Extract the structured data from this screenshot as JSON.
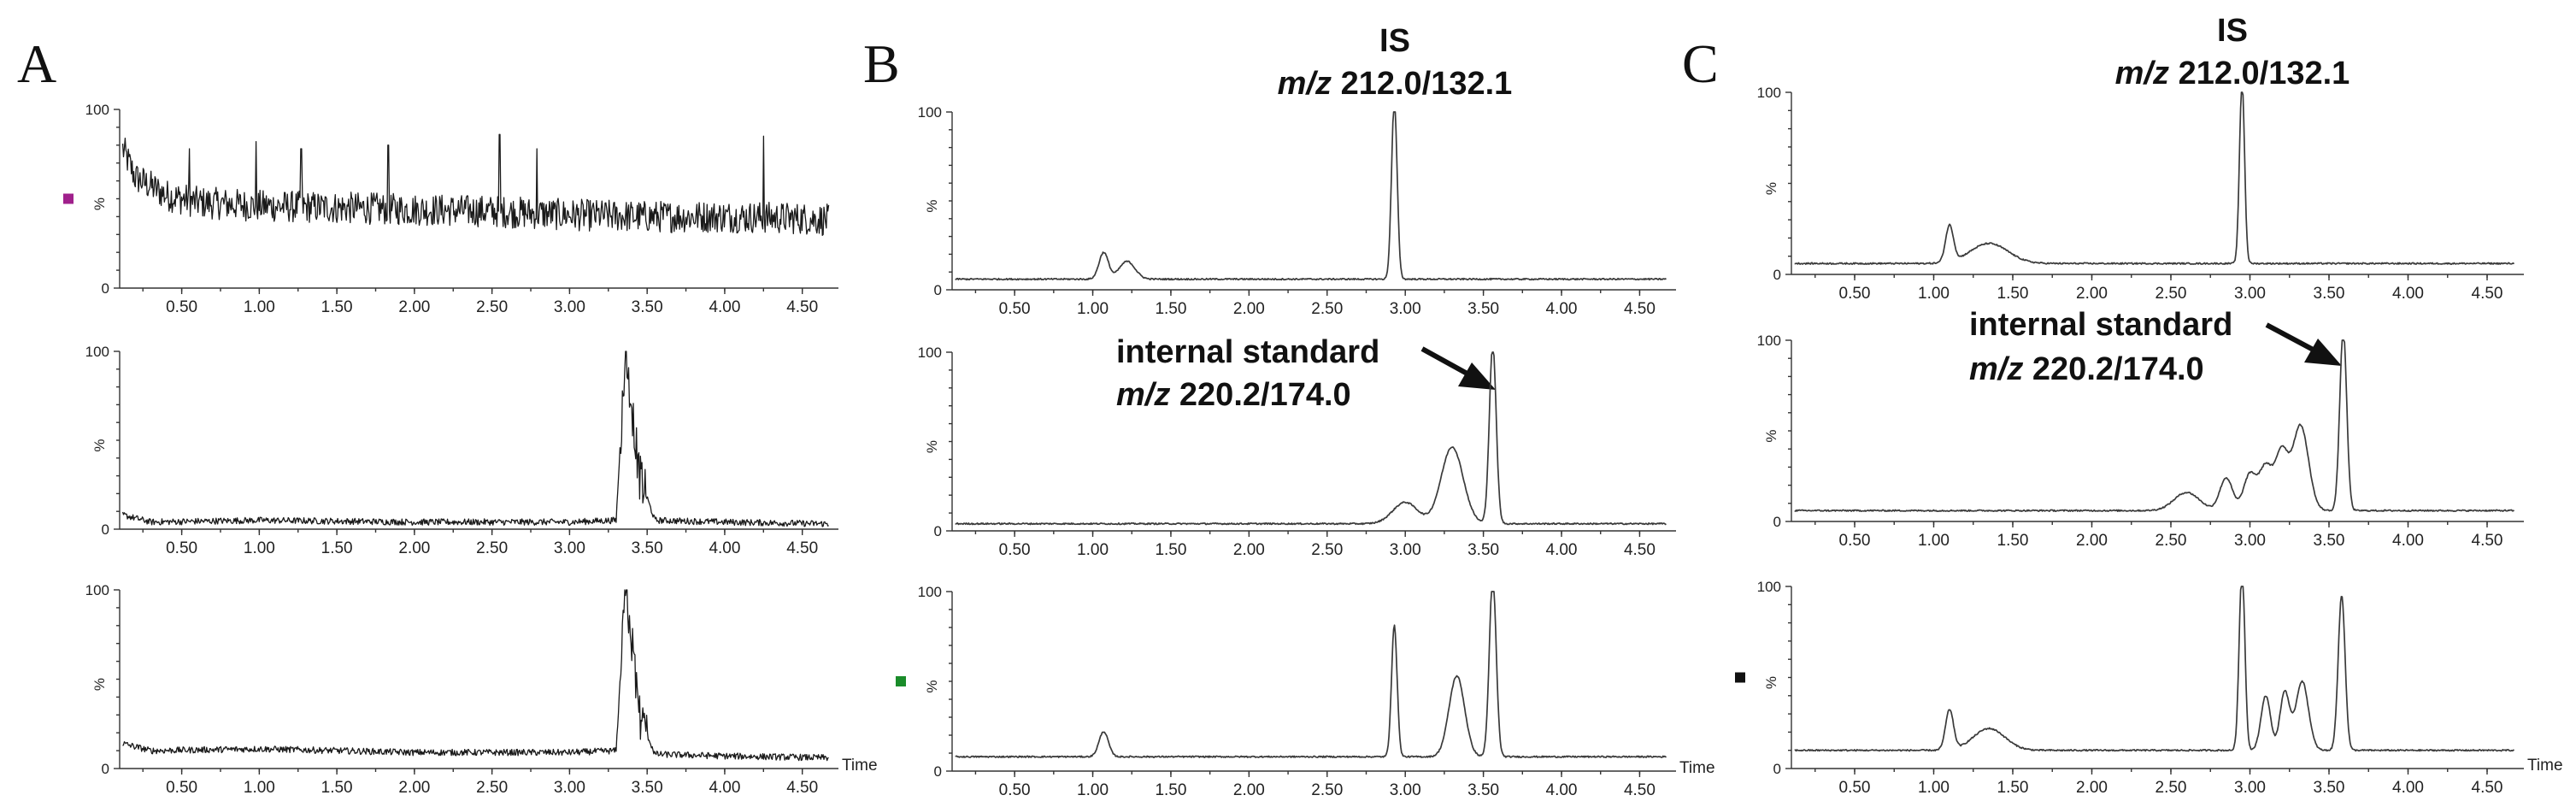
{
  "figure": {
    "panels": [
      {
        "letter": "A",
        "title": "",
        "subtitle": ""
      },
      {
        "letter": "B",
        "title": "IS",
        "subtitle_italic": "m/z",
        "subtitle_rest": " 212.0/132.1",
        "annotation": {
          "line1": "internal standard",
          "line2_italic": "m/z",
          "line2_rest": " 220.2/174.0"
        }
      },
      {
        "letter": "C",
        "title": "IS",
        "subtitle_italic": "m/z",
        "subtitle_rest": " 212.0/132.1",
        "annotation": {
          "line1": "internal standard",
          "line2_italic": "m/z",
          "line2_rest": " 220.2/174.0"
        }
      }
    ],
    "y_unit": "%",
    "y_ticks": [
      "0",
      "100"
    ],
    "x_ticks": [
      "0.50",
      "1.00",
      "1.50",
      "2.00",
      "2.50",
      "3.00",
      "3.50",
      "4.00",
      "4.50"
    ],
    "x_axis_label": "Time",
    "colors": {
      "trace_noisy": "#1a1a1a",
      "trace_smooth": "#3a3a3a",
      "marker_magenta": "#a0208c",
      "marker_green": "#1a8c2a",
      "marker_black": "#111111"
    }
  },
  "chart_data": [
    {
      "type": "line",
      "panel": "A",
      "row": 1,
      "xlim": [
        0.1,
        4.7
      ],
      "ylim": [
        0,
        100
      ],
      "marker_color": "#a0208c",
      "style": "noisy",
      "x": [
        0.1,
        0.12,
        0.2,
        0.4,
        0.6,
        1.0,
        1.5,
        2.0,
        2.5,
        3.0,
        3.5,
        4.0,
        4.5,
        4.67
      ],
      "y": [
        100,
        78,
        62,
        52,
        48,
        46,
        45,
        44,
        43,
        41,
        40,
        40,
        39,
        38
      ],
      "spikes": [
        {
          "x": 0.55,
          "y": 78
        },
        {
          "x": 0.98,
          "y": 82
        },
        {
          "x": 1.27,
          "y": 78
        },
        {
          "x": 1.83,
          "y": 80
        },
        {
          "x": 2.55,
          "y": 86
        },
        {
          "x": 2.79,
          "y": 78
        },
        {
          "x": 4.25,
          "y": 85
        }
      ]
    },
    {
      "type": "line",
      "panel": "A",
      "row": 2,
      "xlim": [
        0.1,
        4.7
      ],
      "ylim": [
        0,
        100
      ],
      "style": "noisy",
      "x": [
        0.1,
        0.12,
        0.3,
        1.0,
        2.0,
        3.0,
        3.3,
        3.36,
        3.4,
        3.45,
        3.55,
        4.0,
        4.67
      ],
      "y": [
        20,
        8,
        4,
        5,
        4,
        4,
        5,
        100,
        70,
        30,
        5,
        4,
        3
      ]
    },
    {
      "type": "line",
      "panel": "A",
      "row": 3,
      "xlim": [
        0.1,
        4.7
      ],
      "ylim": [
        0,
        100
      ],
      "style": "noisy",
      "x": [
        0.1,
        0.12,
        0.3,
        1.0,
        2.0,
        3.0,
        3.3,
        3.36,
        3.4,
        3.45,
        3.55,
        4.0,
        4.67
      ],
      "y": [
        30,
        14,
        10,
        11,
        9,
        9,
        10,
        100,
        72,
        30,
        8,
        7,
        6
      ]
    },
    {
      "type": "line",
      "panel": "B",
      "row": 1,
      "xlim": [
        0.1,
        4.7
      ],
      "ylim": [
        0,
        100
      ],
      "style": "smooth",
      "peaks": [
        {
          "x": 1.07,
          "y": 15,
          "w": 0.03
        },
        {
          "x": 1.22,
          "y": 10,
          "w": 0.05
        },
        {
          "x": 2.93,
          "y": 100,
          "w": 0.018
        }
      ],
      "baseline": 6
    },
    {
      "type": "line",
      "panel": "B",
      "row": 2,
      "xlim": [
        0.1,
        4.7
      ],
      "ylim": [
        0,
        100
      ],
      "style": "smooth",
      "peaks": [
        {
          "x": 3.0,
          "y": 12,
          "w": 0.08
        },
        {
          "x": 3.3,
          "y": 43,
          "w": 0.07
        },
        {
          "x": 3.56,
          "y": 100,
          "w": 0.022
        }
      ],
      "baseline": 4
    },
    {
      "type": "line",
      "panel": "B",
      "row": 3,
      "xlim": [
        0.1,
        4.7
      ],
      "ylim": [
        0,
        100
      ],
      "style": "smooth",
      "marker_color": "#1a8c2a",
      "peaks": [
        {
          "x": 1.07,
          "y": 14,
          "w": 0.03
        },
        {
          "x": 2.93,
          "y": 73,
          "w": 0.018
        },
        {
          "x": 3.33,
          "y": 45,
          "w": 0.05
        },
        {
          "x": 3.56,
          "y": 100,
          "w": 0.022
        }
      ],
      "baseline": 8
    },
    {
      "type": "line",
      "panel": "C",
      "row": 1,
      "xlim": [
        0.1,
        4.7
      ],
      "ylim": [
        0,
        100
      ],
      "style": "smooth",
      "peaks": [
        {
          "x": 1.1,
          "y": 20,
          "w": 0.025
        },
        {
          "x": 1.35,
          "y": 11,
          "w": 0.12
        },
        {
          "x": 2.95,
          "y": 100,
          "w": 0.016
        }
      ],
      "baseline": 6
    },
    {
      "type": "line",
      "panel": "C",
      "row": 2,
      "xlim": [
        0.1,
        4.7
      ],
      "ylim": [
        0,
        100
      ],
      "style": "smooth",
      "peaks": [
        {
          "x": 2.6,
          "y": 10,
          "w": 0.08
        },
        {
          "x": 2.85,
          "y": 18,
          "w": 0.04
        },
        {
          "x": 3.0,
          "y": 20,
          "w": 0.04
        },
        {
          "x": 3.1,
          "y": 24,
          "w": 0.04
        },
        {
          "x": 3.2,
          "y": 32,
          "w": 0.04
        },
        {
          "x": 3.32,
          "y": 47,
          "w": 0.05
        },
        {
          "x": 3.59,
          "y": 100,
          "w": 0.022
        }
      ],
      "baseline": 6
    },
    {
      "type": "line",
      "panel": "C",
      "row": 3,
      "xlim": [
        0.1,
        4.7
      ],
      "ylim": [
        0,
        100
      ],
      "style": "smooth",
      "marker_color": "#111111",
      "peaks": [
        {
          "x": 1.1,
          "y": 22,
          "w": 0.025
        },
        {
          "x": 1.35,
          "y": 12,
          "w": 0.1
        },
        {
          "x": 2.95,
          "y": 100,
          "w": 0.018
        },
        {
          "x": 3.1,
          "y": 30,
          "w": 0.03
        },
        {
          "x": 3.22,
          "y": 32,
          "w": 0.03
        },
        {
          "x": 3.33,
          "y": 38,
          "w": 0.04
        },
        {
          "x": 3.58,
          "y": 85,
          "w": 0.022
        }
      ],
      "baseline": 10
    }
  ]
}
